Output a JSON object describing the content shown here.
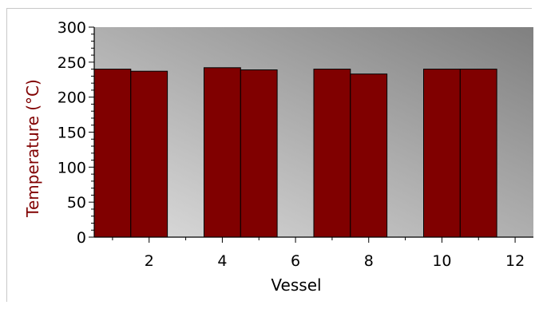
{
  "chart_data": {
    "type": "bar",
    "title": "",
    "xlabel": "Vessel",
    "ylabel": "Temperature (°C)",
    "x": [
      1,
      2,
      4,
      5,
      7,
      8,
      10,
      11
    ],
    "values": [
      240,
      237,
      242,
      239,
      240,
      233,
      240,
      240
    ],
    "xlim": [
      0.5,
      12.5
    ],
    "ylim": [
      0,
      300
    ],
    "x_ticks": [
      2,
      4,
      6,
      8,
      10,
      12
    ],
    "y_ticks": [
      0,
      50,
      100,
      150,
      200,
      250,
      300
    ],
    "bar_width": 1,
    "colors": {
      "bar": "#800000",
      "bar_edge": "#000000",
      "ylabel": "#800000",
      "bg_light": "#dedede",
      "bg_dark": "#808080"
    },
    "grid": false,
    "legend": "none"
  }
}
